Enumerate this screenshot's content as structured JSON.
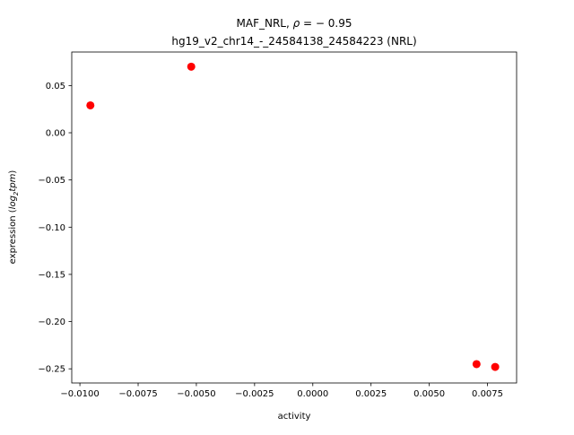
{
  "chart_data": {
    "type": "scatter",
    "title": {
      "pre": "MAF_NRL, ",
      "rho_symbol": "ρ",
      "rho_rest": " = − 0.95",
      "line2": "hg19_v2_chr14_-_24584138_24584223 (NRL)"
    },
    "xlabel": "activity",
    "ylabel": {
      "pre": "expression (",
      "log": "log",
      "sub": "2",
      "unit": "tpm",
      "post": ")"
    },
    "xlim": [
      -0.01035,
      0.00875
    ],
    "ylim": [
      -0.265,
      0.0855
    ],
    "xticks": [
      {
        "value": -0.01,
        "label": "−0.0100"
      },
      {
        "value": -0.0075,
        "label": "−0.0075"
      },
      {
        "value": -0.005,
        "label": "−0.0050"
      },
      {
        "value": -0.0025,
        "label": "−0.0025"
      },
      {
        "value": 0.0,
        "label": "0.0000"
      },
      {
        "value": 0.0025,
        "label": "0.0025"
      },
      {
        "value": 0.005,
        "label": "0.0050"
      },
      {
        "value": 0.0075,
        "label": "0.0075"
      }
    ],
    "yticks": [
      {
        "value": 0.05,
        "label": "0.05"
      },
      {
        "value": 0.0,
        "label": "0.00"
      },
      {
        "value": -0.05,
        "label": "−0.05"
      },
      {
        "value": -0.1,
        "label": "−0.10"
      },
      {
        "value": -0.15,
        "label": "−0.15"
      },
      {
        "value": -0.2,
        "label": "−0.20"
      },
      {
        "value": -0.25,
        "label": "−0.25"
      }
    ],
    "series": [
      {
        "color": "#ff0000",
        "points": [
          {
            "x": -0.00955,
            "y": 0.029
          },
          {
            "x": -0.00522,
            "y": 0.07
          },
          {
            "x": 0.00703,
            "y": -0.245
          },
          {
            "x": 0.00783,
            "y": -0.248
          }
        ]
      }
    ],
    "grid": false,
    "legend": "none"
  }
}
